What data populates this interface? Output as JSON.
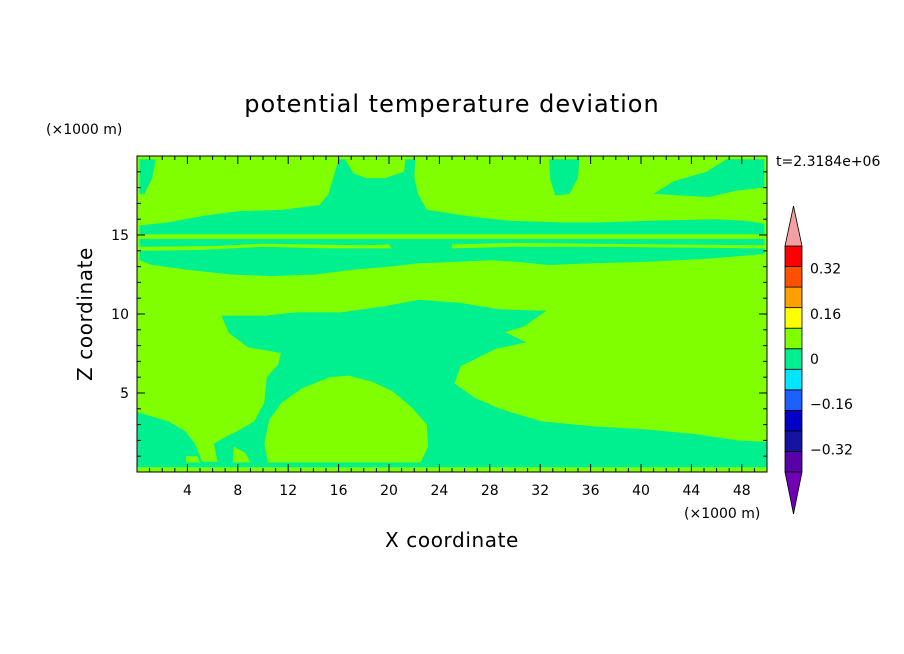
{
  "chart_data": {
    "type": "heatmap",
    "title": "potential temperature deviation",
    "time_label": "t=2.3184e+06",
    "xlabel": "X coordinate",
    "ylabel": "Z coordinate",
    "x_unit": "(×1000 m)",
    "y_unit": "(×1000 m)",
    "xlim": [
      0,
      50
    ],
    "ylim": [
      0,
      20
    ],
    "x_ticks": [
      4,
      8,
      12,
      16,
      20,
      24,
      28,
      32,
      36,
      40,
      44,
      48
    ],
    "y_ticks": [
      5,
      10,
      15
    ],
    "colorbar": {
      "tick_labels": [
        "0.32",
        "0.16",
        "0",
        "-0.16",
        "-0.32"
      ],
      "tick_values": [
        0.32,
        0.16,
        0,
        -0.16,
        -0.32
      ],
      "levels": [
        -0.4,
        -0.32,
        -0.24,
        -0.16,
        -0.08,
        0,
        0.08,
        0.16,
        0.24,
        0.32,
        0.4
      ],
      "colors": [
        "#5a00a8",
        "#1414a0",
        "#0000c8",
        "#1c60ff",
        "#00e6ff",
        "#00f090",
        "#7fff00",
        "#ffff00",
        "#ffa000",
        "#ff5000",
        "#ff0000"
      ],
      "over_color": "#f4a0a0",
      "under_color": "#7000b4"
    },
    "field_colors": {
      "background": "#7fff00",
      "negative": "#00f090"
    },
    "regions": [
      {
        "value": "negative",
        "points": [
          [
            0,
            0.35
          ],
          [
            50,
            0.35
          ],
          [
            50,
            0.65
          ],
          [
            0,
            0.65
          ]
        ]
      },
      {
        "value": "negative",
        "points": [
          [
            0,
            0.3
          ],
          [
            0,
            3.8
          ],
          [
            2.5,
            3.2
          ],
          [
            3.8,
            2.6
          ],
          [
            4.6,
            1.8
          ],
          [
            5.2,
            0.6
          ],
          [
            6.4,
            0.6
          ],
          [
            6.1,
            1.8
          ],
          [
            7.2,
            2.3
          ],
          [
            8.0,
            2.6
          ],
          [
            9.3,
            3.2
          ],
          [
            10.1,
            4.4
          ],
          [
            10.3,
            6.0
          ],
          [
            11.2,
            6.8
          ],
          [
            11.5,
            7.8
          ],
          [
            12.9,
            8.5
          ],
          [
            14.4,
            8.9
          ],
          [
            16.0,
            9.0
          ],
          [
            18.1,
            9.2
          ],
          [
            21.2,
            9.4
          ],
          [
            24.2,
            9.5
          ],
          [
            26.5,
            9.4
          ],
          [
            28.8,
            9.0
          ],
          [
            30.9,
            8.2
          ],
          [
            28.5,
            7.8
          ],
          [
            25.7,
            6.7
          ],
          [
            25.2,
            5.6
          ],
          [
            26.8,
            4.7
          ],
          [
            28.8,
            4.0
          ],
          [
            32.1,
            3.2
          ],
          [
            36.2,
            2.9
          ],
          [
            40.3,
            2.7
          ],
          [
            44.3,
            2.4
          ],
          [
            47.7,
            2.0
          ],
          [
            50,
            1.9
          ],
          [
            50,
            0.3
          ]
        ]
      },
      {
        "value": "negative",
        "points": [
          [
            6.7,
            9.9
          ],
          [
            10.2,
            9.9
          ],
          [
            12.6,
            10.1
          ],
          [
            16.2,
            10.1
          ],
          [
            19.7,
            10.5
          ],
          [
            22.4,
            10.9
          ],
          [
            25.7,
            10.7
          ],
          [
            28.7,
            10.3
          ],
          [
            32.5,
            10.2
          ],
          [
            30.7,
            9.2
          ],
          [
            27.7,
            8.5
          ],
          [
            24.6,
            8.0
          ],
          [
            21.2,
            7.6
          ],
          [
            18.0,
            7.3
          ],
          [
            14.8,
            7.3
          ],
          [
            11.6,
            7.5
          ],
          [
            8.8,
            7.9
          ],
          [
            7.3,
            8.8
          ]
        ]
      },
      {
        "value": "negative",
        "points": [
          [
            0.2,
            15.6
          ],
          [
            2.5,
            15.8
          ],
          [
            5.2,
            16.2
          ],
          [
            8.0,
            16.5
          ],
          [
            11.6,
            16.6
          ],
          [
            14.5,
            16.9
          ],
          [
            15.2,
            17.6
          ],
          [
            15.6,
            18.7
          ],
          [
            16.0,
            19.8
          ],
          [
            22.1,
            19.8
          ],
          [
            22.0,
            18.7
          ],
          [
            22.3,
            17.6
          ],
          [
            23.0,
            16.6
          ],
          [
            26.2,
            16.2
          ],
          [
            29.5,
            15.9
          ],
          [
            33.5,
            15.8
          ],
          [
            36.9,
            15.8
          ],
          [
            40.6,
            15.9
          ],
          [
            45.9,
            16.0
          ],
          [
            48.3,
            15.9
          ],
          [
            49.8,
            15.7
          ],
          [
            49.8,
            13.8
          ],
          [
            45.3,
            13.5
          ],
          [
            40.3,
            13.3
          ],
          [
            35.9,
            13.2
          ],
          [
            32.7,
            13.1
          ],
          [
            30.2,
            13.3
          ],
          [
            28.1,
            13.4
          ],
          [
            25.3,
            13.3
          ],
          [
            22.3,
            13.2
          ],
          [
            20.1,
            13.0
          ],
          [
            17.1,
            12.8
          ],
          [
            14.2,
            12.5
          ],
          [
            10.7,
            12.4
          ],
          [
            7.4,
            12.5
          ],
          [
            4.0,
            12.8
          ],
          [
            1.2,
            13.1
          ],
          [
            0.2,
            13.4
          ]
        ]
      },
      {
        "value": "negative",
        "points": [
          [
            32.7,
            19.8
          ],
          [
            35.1,
            19.8
          ],
          [
            35.0,
            18.6
          ],
          [
            34.3,
            17.6
          ],
          [
            33.2,
            17.5
          ],
          [
            32.8,
            18.5
          ]
        ]
      },
      {
        "value": "negative",
        "points": [
          [
            0.2,
            19.8
          ],
          [
            1.5,
            19.8
          ],
          [
            1.2,
            18.6
          ],
          [
            0.6,
            17.6
          ],
          [
            0.2,
            17.6
          ]
        ]
      },
      {
        "value": "negative",
        "points": [
          [
            41.0,
            17.6
          ],
          [
            45.4,
            17.4
          ],
          [
            47.5,
            17.8
          ],
          [
            49.8,
            18.0
          ],
          [
            49.8,
            19.8
          ],
          [
            46.8,
            19.8
          ],
          [
            45.2,
            19.0
          ],
          [
            42.6,
            18.4
          ]
        ]
      },
      {
        "value": "positive",
        "points": [
          [
            16.5,
            19.8
          ],
          [
            21.3,
            19.8
          ],
          [
            21.2,
            19.0
          ],
          [
            19.7,
            18.6
          ],
          [
            18.2,
            18.6
          ],
          [
            17.2,
            18.9
          ]
        ]
      },
      {
        "value": "positive",
        "points": [
          [
            0.2,
            14.75
          ],
          [
            49.8,
            14.75
          ],
          [
            49.8,
            15.05
          ],
          [
            0.2,
            15.05
          ]
        ]
      },
      {
        "value": "positive",
        "points": [
          [
            0.2,
            14.25
          ],
          [
            6.0,
            14.3
          ],
          [
            10.0,
            14.45
          ],
          [
            14.0,
            14.4
          ],
          [
            18.0,
            14.35
          ],
          [
            20.0,
            14.4
          ],
          [
            20.2,
            14.15
          ],
          [
            15.0,
            14.15
          ],
          [
            10.0,
            14.25
          ],
          [
            5.0,
            14.05
          ],
          [
            0.2,
            14.0
          ]
        ]
      },
      {
        "value": "positive",
        "points": [
          [
            25.0,
            14.4
          ],
          [
            30.0,
            14.5
          ],
          [
            36.0,
            14.45
          ],
          [
            42.0,
            14.4
          ],
          [
            49.8,
            14.35
          ],
          [
            49.8,
            14.15
          ],
          [
            44.0,
            14.2
          ],
          [
            36.0,
            14.25
          ],
          [
            30.0,
            14.25
          ],
          [
            25.0,
            14.15
          ]
        ]
      },
      {
        "value": "positive",
        "points": [
          [
            23.5,
            13.0
          ],
          [
            26.0,
            12.4
          ],
          [
            28.5,
            11.8
          ],
          [
            30.8,
            11.6
          ],
          [
            33.5,
            12.0
          ],
          [
            35.5,
            12.6
          ],
          [
            35.5,
            13.0
          ],
          [
            30.0,
            13.0
          ],
          [
            26.0,
            13.1
          ]
        ]
      },
      {
        "value": "positive",
        "points": [
          [
            10.0,
            12.1
          ],
          [
            12.0,
            11.4
          ],
          [
            13.5,
            10.8
          ],
          [
            15.0,
            10.6
          ],
          [
            15.4,
            11.1
          ],
          [
            14.3,
            11.8
          ],
          [
            12.5,
            12.3
          ]
        ]
      },
      {
        "value": "positive",
        "points": [
          [
            10.4,
            0.6
          ],
          [
            10.1,
            1.8
          ],
          [
            10.5,
            3.3
          ],
          [
            11.5,
            4.4
          ],
          [
            13.1,
            5.3
          ],
          [
            15.3,
            6.0
          ],
          [
            16.8,
            6.1
          ],
          [
            18.7,
            5.7
          ],
          [
            20.3,
            5.1
          ],
          [
            21.8,
            4.1
          ],
          [
            23.0,
            3.0
          ],
          [
            23.1,
            1.6
          ],
          [
            22.5,
            0.6
          ]
        ]
      },
      {
        "value": "positive",
        "points": [
          [
            7.6,
            0.6
          ],
          [
            7.7,
            1.6
          ],
          [
            8.6,
            1.2
          ],
          [
            9.0,
            0.6
          ]
        ]
      },
      {
        "value": "positive",
        "points": [
          [
            3.9,
            0.6
          ],
          [
            3.9,
            1.0
          ],
          [
            4.8,
            1.0
          ],
          [
            5.0,
            0.6
          ]
        ]
      }
    ]
  }
}
